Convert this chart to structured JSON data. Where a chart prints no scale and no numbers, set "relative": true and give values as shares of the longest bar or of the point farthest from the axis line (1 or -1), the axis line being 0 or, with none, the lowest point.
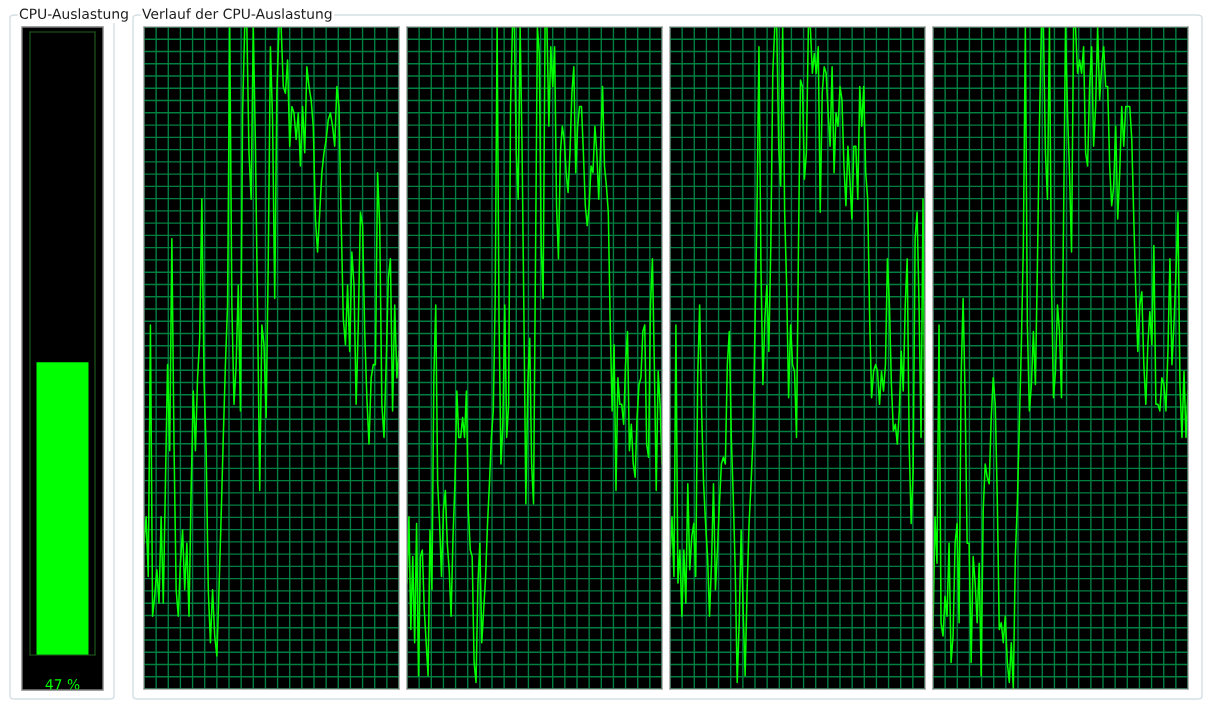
{
  "chart_data": [
    {
      "type": "bar",
      "title": "CPU-Auslastung",
      "categories": [
        null
      ],
      "values": [
        47
      ],
      "value_labels": [
        "47 %"
      ],
      "color": "#00ff00",
      "ylim": [
        0,
        100
      ]
    },
    {
      "type": "line",
      "title": "Verlauf der CPU-Auslastung",
      "relative": true,
      "grid": true,
      "categories": [
        null,
        null,
        null,
        null,
        null,
        null,
        null,
        null,
        null,
        null,
        null,
        null,
        null,
        null,
        null,
        null,
        null,
        null,
        null,
        null,
        null,
        null,
        null,
        null,
        null,
        null,
        null,
        null,
        null,
        null,
        null,
        null,
        null,
        null,
        null,
        null,
        null,
        null,
        null,
        null,
        null,
        null,
        null,
        null,
        null,
        null,
        null,
        null,
        null,
        null,
        null,
        null,
        null,
        null,
        null,
        null,
        null,
        null,
        null,
        null,
        null,
        null,
        null,
        null,
        null,
        null,
        null,
        null,
        null,
        null,
        null,
        null,
        null,
        null,
        null,
        null,
        null,
        null,
        null,
        null,
        null,
        null,
        null,
        null,
        null,
        null,
        null,
        null,
        null,
        null,
        null,
        null,
        null,
        null,
        null,
        null,
        null,
        null,
        null,
        null,
        null,
        null,
        null,
        null,
        null,
        null,
        null,
        null,
        null,
        null,
        null,
        null,
        null,
        null,
        null,
        null,
        null,
        null,
        null,
        null
      ],
      "series": [
        {
          "color": "#00ff00",
          "values": [
            0.22,
            0.26,
            0.17,
            0.55,
            0.11,
            0.14,
            0.18,
            0.13,
            0.26,
            0.13,
            0.31,
            0.49,
            0.36,
            0.68,
            0.37,
            0.15,
            0.11,
            0.19,
            0.24,
            0.15,
            0.22,
            0.11,
            0.3,
            0.45,
            0.36,
            0.47,
            0.53,
            0.74,
            0.47,
            0.36,
            0.15,
            0.07,
            0.15,
            0.08,
            0.05,
            0.15,
            0.26,
            0.38,
            0.49,
            0.58,
            1,
            0.58,
            0.43,
            0.49,
            0.61,
            0.42,
            0.87,
            1,
            1,
            0.81,
            0.74,
            1,
            0.82,
            0.57,
            0.3,
            0.55,
            0.52,
            0.41,
            0.65,
            0.97,
            0.86,
            0.59,
            0.9,
            1,
            1,
            0.91,
            0.9,
            0.95,
            0.82,
            0.88,
            0.87,
            0.83,
            0.87,
            0.79,
            0.88,
            0.81,
            0.94,
            0.91,
            0.89,
            0.85,
            0.71,
            0.66,
            0.72,
            0.78,
            0.81,
            0.83,
            0.86,
            0.87,
            0.85,
            0.82,
            0.91,
            0.88,
            0.71,
            0.56,
            0.52,
            0.61,
            0.51,
            0.66,
            0.61,
            0.43,
            0.55,
            0.72,
            0.7,
            0.54,
            0.44,
            0.37,
            0.47,
            0.49,
            0.49,
            0.78,
            0.7,
            0.43,
            0.38,
            0.49,
            0.62,
            0.65,
            0.42,
            0.58,
            0.47,
            0.51
          ]
        }
      ]
    },
    {
      "type": "line",
      "relative": true,
      "grid": true,
      "categories": [
        null,
        null,
        null,
        null,
        null,
        null,
        null,
        null,
        null,
        null,
        null,
        null,
        null,
        null,
        null,
        null,
        null,
        null,
        null,
        null,
        null,
        null,
        null,
        null,
        null,
        null,
        null,
        null,
        null,
        null,
        null,
        null,
        null,
        null,
        null,
        null,
        null,
        null,
        null,
        null,
        null,
        null,
        null,
        null,
        null,
        null,
        null,
        null,
        null,
        null,
        null,
        null,
        null,
        null,
        null,
        null,
        null,
        null,
        null,
        null,
        null,
        null,
        null,
        null,
        null,
        null,
        null,
        null,
        null,
        null,
        null,
        null,
        null,
        null,
        null,
        null,
        null,
        null,
        null,
        null,
        null,
        null,
        null,
        null,
        null,
        null,
        null,
        null,
        null,
        null,
        null,
        null,
        null,
        null,
        null,
        null,
        null,
        null,
        null,
        null,
        null,
        null,
        null,
        null,
        null,
        null,
        null,
        null,
        null,
        null,
        null,
        null,
        null,
        null,
        null,
        null,
        null,
        null,
        null,
        null,
        null,
        null,
        null,
        null,
        null,
        null,
        null,
        null,
        null,
        null,
        null,
        null,
        null,
        null
      ],
      "series": [
        {
          "color": "#00ff00",
          "values": [
            0.16,
            0.26,
            0.09,
            0.2,
            0.07,
            0.25,
            0.02,
            0.2,
            0.21,
            0.12,
            0.07,
            0.02,
            0.24,
            0.15,
            0.47,
            0.58,
            0.31,
            0.25,
            0.17,
            0.27,
            0.3,
            0.22,
            0.18,
            0.11,
            0.23,
            0.31,
            0.45,
            0.38,
            0.38,
            0.41,
            0.38,
            0.45,
            0.27,
            0.21,
            0.2,
            0.04,
            0.01,
            0.16,
            0.22,
            0.07,
            0.12,
            0.17,
            0.25,
            0.31,
            0.38,
            0.42,
            0.59,
            1,
            0.56,
            0.34,
            0.4,
            0.58,
            0.38,
            0.43,
            0.88,
            1,
            1,
            0.81,
            0.74,
            1,
            0.82,
            0.56,
            0.28,
            0.46,
            0.53,
            0.34,
            0.28,
            0.64,
            1,
            0.96,
            0.67,
            0.59,
            1,
            1,
            0.85,
            0.97,
            0.91,
            0.97,
            0.73,
            0.65,
            0.81,
            0.85,
            0.83,
            0.78,
            0.75,
            0.81,
            0.9,
            0.94,
            0.78,
            0.85,
            0.88,
            0.88,
            0.81,
            0.73,
            0.7,
            0.73,
            0.79,
            0.78,
            0.85,
            0.81,
            0.74,
            0.82,
            0.91,
            0.79,
            0.76,
            0.72,
            0.55,
            0.42,
            0.52,
            0.3,
            0.47,
            0.43,
            0.43,
            0.4,
            0.49,
            0.54,
            0.36,
            0.4,
            0.34,
            0.32,
            0.41,
            0.46,
            0.47,
            0.54,
            0.55,
            0.37,
            0.35,
            0.58,
            0.65,
            0.49,
            0.3,
            0.48,
            0.43,
            0.34
          ]
        }
      ]
    },
    {
      "type": "line",
      "relative": true,
      "grid": true,
      "categories": [
        null,
        null,
        null,
        null,
        null,
        null,
        null,
        null,
        null,
        null,
        null,
        null,
        null,
        null,
        null,
        null,
        null,
        null,
        null,
        null,
        null,
        null,
        null,
        null,
        null,
        null,
        null,
        null,
        null,
        null,
        null,
        null,
        null,
        null,
        null,
        null,
        null,
        null,
        null,
        null,
        null,
        null,
        null,
        null,
        null,
        null,
        null,
        null,
        null,
        null,
        null,
        null,
        null,
        null,
        null,
        null,
        null,
        null,
        null,
        null,
        null,
        null,
        null,
        null,
        null,
        null,
        null,
        null,
        null,
        null,
        null,
        null,
        null,
        null,
        null,
        null,
        null,
        null,
        null,
        null,
        null,
        null,
        null,
        null,
        null,
        null,
        null,
        null,
        null,
        null,
        null,
        null,
        null,
        null,
        null,
        null,
        null,
        null,
        null,
        null,
        null,
        null,
        null,
        null,
        null,
        null,
        null,
        null,
        null,
        null,
        null,
        null,
        null,
        null,
        null,
        null,
        null,
        null,
        null,
        null,
        null,
        null,
        null,
        null,
        null,
        null,
        null,
        null,
        null,
        null
      ],
      "series": [
        {
          "color": "#00ff00",
          "values": [
            0.2,
            0.26,
            0.17,
            0.55,
            0.16,
            0.21,
            0.11,
            0.21,
            0.13,
            0.31,
            0.18,
            0.23,
            0.25,
            0.17,
            0.47,
            0.58,
            0.42,
            0.31,
            0.25,
            0.2,
            0.11,
            0.19,
            0.31,
            0.15,
            0.21,
            0.28,
            0.34,
            0.35,
            0.34,
            0.49,
            0.54,
            0.38,
            0.29,
            0.18,
            0.01,
            0.1,
            0.24,
            0.12,
            0.02,
            0.15,
            0.25,
            0.31,
            0.38,
            0.55,
            0.72,
            0.97,
            0.64,
            0.46,
            0.56,
            0.61,
            0.51,
            0.67,
            0.93,
            1,
            1,
            0.82,
            0.76,
            1,
            0.72,
            0.61,
            0.44,
            0.55,
            0.49,
            0.48,
            0.38,
            0.67,
            0.92,
            0.91,
            0.77,
            0.81,
            1,
            1,
            0.93,
            0.96,
            0.93,
            0.97,
            0.72,
            0.9,
            0.94,
            0.93,
            0.87,
            0.82,
            0.94,
            0.78,
            0.87,
            0.85,
            0.91,
            0.89,
            0.79,
            0.73,
            0.82,
            0.77,
            0.71,
            0.82,
            0.82,
            0.74,
            0.91,
            0.85,
            0.91,
            0.78,
            0.74,
            0.56,
            0.44,
            0.48,
            0.49,
            0.48,
            0.43,
            0.48,
            0.45,
            0.49,
            0.65,
            0.58,
            0.46,
            0.39,
            0.4,
            0.37,
            0.42,
            0.51,
            0.45,
            0.58,
            0.65,
            0.37,
            0.25,
            0.33,
            0.68,
            0.72,
            0.58,
            0.38,
            0.74,
            0.37
          ]
        }
      ]
    },
    {
      "type": "line",
      "relative": true,
      "grid": true,
      "categories": [
        null,
        null,
        null,
        null,
        null,
        null,
        null,
        null,
        null,
        null,
        null,
        null,
        null,
        null,
        null,
        null,
        null,
        null,
        null,
        null,
        null,
        null,
        null,
        null,
        null,
        null,
        null,
        null,
        null,
        null,
        null,
        null,
        null,
        null,
        null,
        null,
        null,
        null,
        null,
        null,
        null,
        null,
        null,
        null,
        null,
        null,
        null,
        null,
        null,
        null,
        null,
        null,
        null,
        null,
        null,
        null,
        null,
        null,
        null,
        null,
        null,
        null,
        null,
        null,
        null,
        null,
        null,
        null,
        null,
        null,
        null,
        null,
        null,
        null,
        null,
        null,
        null,
        null,
        null,
        null,
        null,
        null,
        null,
        null,
        null,
        null,
        null,
        null,
        null,
        null,
        null,
        null,
        null,
        null,
        null,
        null,
        null,
        null,
        null,
        null,
        null,
        null,
        null,
        null,
        null,
        null,
        null,
        null,
        null,
        null,
        null,
        null,
        null,
        null,
        null,
        null,
        null,
        null,
        null,
        null,
        null,
        null,
        null,
        null,
        null,
        null,
        null,
        null
      ],
      "series": [
        {
          "color": "#00ff00",
          "values": [
            0.09,
            0.26,
            0.19,
            0.55,
            0.1,
            0.08,
            0.14,
            0.11,
            0.22,
            0.04,
            0.08,
            0.22,
            0.25,
            0.1,
            0.47,
            0.59,
            0.44,
            0.22,
            0.22,
            0.04,
            0.2,
            0.16,
            0.1,
            0.19,
            0.02,
            0.27,
            0.34,
            0.32,
            0.31,
            0.41,
            0.47,
            0.43,
            0.29,
            0.09,
            0.1,
            0.07,
            0.11,
            0.04,
            0.01,
            0.07,
            0,
            0.2,
            0.28,
            0.4,
            0.52,
            0.67,
            1,
            0.55,
            0.42,
            0.46,
            0.54,
            0.46,
            0.64,
            0.85,
            1,
            1,
            0.81,
            0.74,
            1,
            0.62,
            0.44,
            0.48,
            0.58,
            0.54,
            0.44,
            0.7,
            1,
            0.87,
            0.78,
            0.66,
            1,
            1,
            0.93,
            0.95,
            0.93,
            0.97,
            0.81,
            0.79,
            0.91,
            0.97,
            0.82,
            0.88,
            1,
            0.89,
            0.94,
            0.97,
            0.91,
            0.91,
            0.79,
            0.73,
            0.76,
            0.85,
            0.71,
            0.78,
            0.88,
            0.82,
            0.88,
            0.88,
            0.88,
            0.83,
            0.71,
            0.6,
            0.51,
            0.58,
            0.6,
            0.49,
            0.43,
            0.52,
            0.57,
            0.52,
            0.67,
            0.43,
            0.43,
            0.42,
            0.47,
            0.46,
            0.42,
            0.51,
            0.65,
            0.49,
            0.55,
            0.63,
            0.72,
            0.46,
            0.38,
            0.48,
            0.38,
            0.45
          ]
        }
      ]
    }
  ]
}
